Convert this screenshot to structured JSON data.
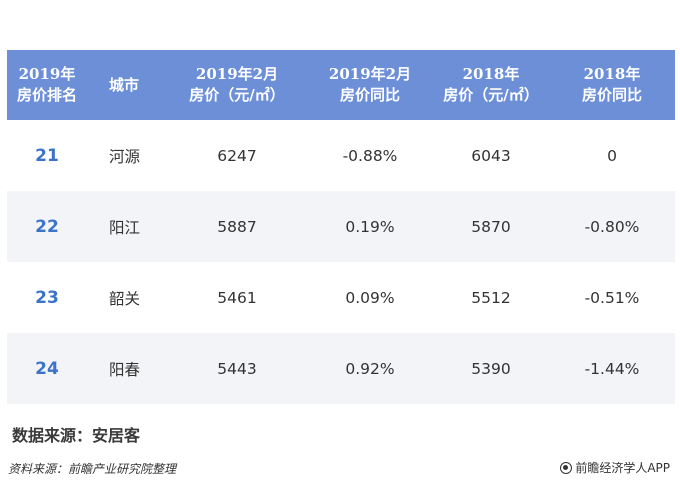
{
  "table": {
    "headers": [
      "2019年\n房价排名",
      "城市",
      "2019年2月\n房价（元/㎡）",
      "2019年2月\n房价同比",
      "2018年\n房价（元/㎡）",
      "2018年\n房价同比"
    ],
    "rows": [
      {
        "rank": "21",
        "city": "河源",
        "price_2019": "6247",
        "yoy_2019": "-0.88%",
        "price_2018": "6043",
        "yoy_2018": "0"
      },
      {
        "rank": "22",
        "city": "阳江",
        "price_2019": "5887",
        "yoy_2019": "0.19%",
        "price_2018": "5870",
        "yoy_2018": "-0.80%"
      },
      {
        "rank": "23",
        "city": "韶关",
        "price_2019": "5461",
        "yoy_2019": "0.09%",
        "price_2018": "5512",
        "yoy_2018": "-0.51%"
      },
      {
        "rank": "24",
        "city": "阳春",
        "price_2019": "5443",
        "yoy_2019": "0.92%",
        "price_2018": "5390",
        "yoy_2018": "-1.44%"
      }
    ]
  },
  "source_note": "数据来源：安居客",
  "footer": {
    "left": "资料来源：前瞻产业研究院整理",
    "right": "前瞻经济学人APP"
  },
  "colors": {
    "header_bg": "#6c8fd8",
    "rank_text": "#3a73c8",
    "alt_row_bg": "#f3f4f8"
  }
}
